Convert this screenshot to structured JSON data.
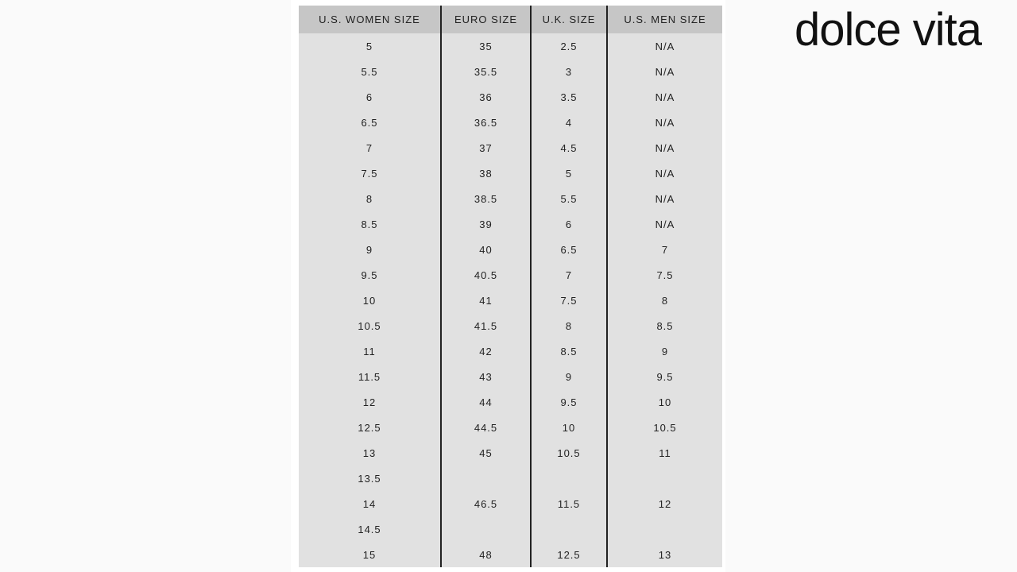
{
  "logo": "dolce vita",
  "table": {
    "headers": [
      "U.S. WOMEN SIZE",
      "EURO SIZE",
      "U.K. SIZE",
      "U.S. MEN SIZE"
    ],
    "rows": [
      [
        "5",
        "35",
        "2.5",
        "N/A"
      ],
      [
        "5.5",
        "35.5",
        "3",
        "N/A"
      ],
      [
        "6",
        "36",
        "3.5",
        "N/A"
      ],
      [
        "6.5",
        "36.5",
        "4",
        "N/A"
      ],
      [
        "7",
        "37",
        "4.5",
        "N/A"
      ],
      [
        "7.5",
        "38",
        "5",
        "N/A"
      ],
      [
        "8",
        "38.5",
        "5.5",
        "N/A"
      ],
      [
        "8.5",
        "39",
        "6",
        "N/A"
      ],
      [
        "9",
        "40",
        "6.5",
        "7"
      ],
      [
        "9.5",
        "40.5",
        "7",
        "7.5"
      ],
      [
        "10",
        "41",
        "7.5",
        "8"
      ],
      [
        "10.5",
        "41.5",
        "8",
        "8.5"
      ],
      [
        "11",
        "42",
        "8.5",
        "9"
      ],
      [
        "11.5",
        "43",
        "9",
        "9.5"
      ],
      [
        "12",
        "44",
        "9.5",
        "10"
      ],
      [
        "12.5",
        "44.5",
        "10",
        "10.5"
      ],
      [
        "13",
        "45",
        "10.5",
        "11"
      ],
      [
        "13.5",
        "",
        "",
        ""
      ],
      [
        "14",
        "46.5",
        "11.5",
        "12"
      ],
      [
        "14.5",
        "",
        "",
        ""
      ],
      [
        "15",
        "48",
        "12.5",
        "13"
      ]
    ]
  }
}
